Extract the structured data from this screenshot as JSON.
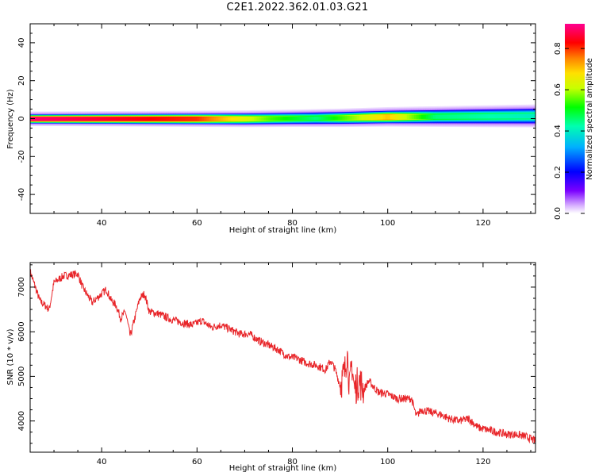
{
  "title": "C2E1.2022.362.01.03.G21",
  "chart_data": [
    {
      "type": "heatmap",
      "xlabel": "Height of straight line (km)",
      "ylabel": "Frequency (Hz)",
      "xlim": [
        25,
        131
      ],
      "ylim": [
        -50,
        50
      ],
      "xticks": [
        40,
        60,
        80,
        100,
        120
      ],
      "yticks": [
        -40,
        -20,
        0,
        20,
        40
      ],
      "colorbar": {
        "label": "Normalized spectral amplitude",
        "range": [
          0,
          0.92
        ],
        "ticks": [
          "0.0",
          "0.2",
          "0.4",
          "0.6",
          "0.8"
        ]
      },
      "band": {
        "center_hz": [
          [
            25,
            0
          ],
          [
            70,
            0
          ],
          [
            90,
            0.5
          ],
          [
            100,
            1
          ],
          [
            131,
            1.5
          ]
        ],
        "halfwidth_hz": [
          [
            25,
            2.5
          ],
          [
            80,
            3
          ],
          [
            131,
            4
          ]
        ],
        "peak_amplitude": [
          [
            25,
            0.9
          ],
          [
            60,
            0.8
          ],
          [
            75,
            0.55
          ],
          [
            85,
            0.45
          ],
          [
            100,
            0.7
          ],
          [
            110,
            0.45
          ],
          [
            131,
            0.4
          ]
        ]
      }
    },
    {
      "type": "line",
      "xlabel": "Height of straight line (km)",
      "ylabel": "SNR (10 * v/v)",
      "xlim": [
        25,
        131
      ],
      "ylim": [
        3300,
        7550
      ],
      "xticks": [
        40,
        60,
        80,
        100,
        120
      ],
      "yticks": [
        4000,
        5000,
        6000,
        7000
      ],
      "color": "#e8262a",
      "x": [
        25,
        27,
        29,
        30,
        32,
        35,
        36,
        38,
        39,
        41,
        42,
        43,
        44,
        45,
        46,
        48,
        49,
        50,
        52,
        54,
        57,
        59,
        61,
        63,
        65,
        67,
        69,
        71,
        73,
        75,
        77,
        79,
        81,
        83,
        85,
        87,
        88,
        89,
        90,
        91,
        91.5,
        92,
        92.5,
        93,
        94,
        95,
        96,
        98,
        100,
        102,
        104,
        105,
        106,
        107,
        109,
        111,
        113,
        115,
        117,
        119,
        121,
        123,
        125,
        127,
        129,
        131
      ],
      "y": [
        7350,
        6700,
        6500,
        7100,
        7250,
        7300,
        7000,
        6650,
        6750,
        6950,
        6700,
        6600,
        6300,
        6450,
        5900,
        6750,
        6850,
        6450,
        6400,
        6300,
        6200,
        6150,
        6250,
        6100,
        6150,
        6050,
        5950,
        5950,
        5800,
        5700,
        5600,
        5450,
        5400,
        5300,
        5250,
        5150,
        5350,
        5150,
        4800,
        5100,
        5600,
        4700,
        5300,
        4700,
        4900,
        4700,
        4900,
        4650,
        4600,
        4500,
        4500,
        4500,
        4100,
        4250,
        4200,
        4150,
        4050,
        4000,
        4050,
        3850,
        3800,
        3750,
        3700,
        3700,
        3650,
        3550
      ]
    }
  ]
}
